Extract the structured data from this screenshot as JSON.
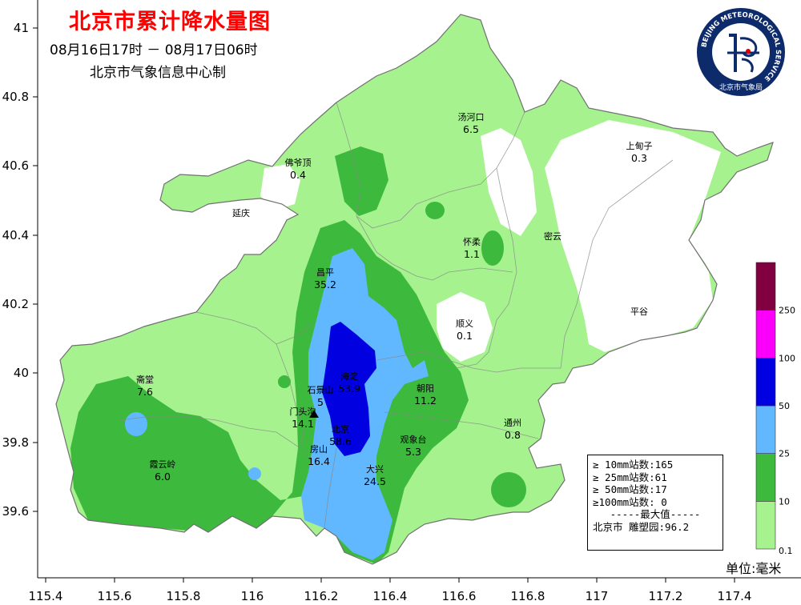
{
  "title": "北京市累计降水量图",
  "time_range": "08月16日17时 － 08月17日06时",
  "issuer": "北京市气象信息中心制",
  "logo": {
    "ring_text": "BEIJING METEOROLOGICAL SERVICE",
    "cn_text": "北京市气象局"
  },
  "unit_label": "单位:毫米",
  "axes": {
    "x_ticks": [
      "115.4",
      "115.6",
      "115.8",
      "116",
      "116.2",
      "116.4",
      "116.6",
      "116.8",
      "117",
      "117.2",
      "117.4"
    ],
    "y_ticks": [
      "41",
      "40.8",
      "40.6",
      "40.4",
      "40.2",
      "40",
      "39.8",
      "39.6"
    ]
  },
  "legend": {
    "levels": [
      {
        "label": "0.1",
        "color": "#a6f28f"
      },
      {
        "label": "10",
        "color": "#3dba3d"
      },
      {
        "label": "25",
        "color": "#61b8ff"
      },
      {
        "label": "50",
        "color": "#0000e1"
      },
      {
        "label": "100",
        "color": "#fa00fa"
      },
      {
        "label": "250",
        "color": "#800040"
      }
    ]
  },
  "stats": {
    "line1": "≥ 10mm站数:165",
    "line2": "≥ 25mm站数:61",
    "line3": "≥ 50mm站数:17",
    "line4": "≥100mm站数: 0",
    "line5": "-----最大值-----",
    "line6": "北京市 雕塑园:96.2"
  },
  "stations": [
    {
      "name": "汤河口",
      "value": "6.5"
    },
    {
      "name": "上甸子",
      "value": "0.3"
    },
    {
      "name": "佛爷顶",
      "value": "0.4"
    },
    {
      "name": "延庆",
      "value": ""
    },
    {
      "name": "密云",
      "value": ""
    },
    {
      "name": "怀柔",
      "value": "1.1"
    },
    {
      "name": "昌平",
      "value": "35.2"
    },
    {
      "name": "顺义",
      "value": "0.1"
    },
    {
      "name": "平谷",
      "value": ""
    },
    {
      "name": "斋堂",
      "value": "7.6"
    },
    {
      "name": "海淀",
      "value": "53.9"
    },
    {
      "name": "朝阳",
      "value": "11.2"
    },
    {
      "name": "石景山",
      "value": "5"
    },
    {
      "name": "门头沟",
      "value": "14.1"
    },
    {
      "name": "北京",
      "value": "58.6"
    },
    {
      "name": "观象台",
      "value": "5.3"
    },
    {
      "name": "通州",
      "value": "0.8"
    },
    {
      "name": "霞云岭",
      "value": "6.0"
    },
    {
      "name": "房山",
      "value": "16.4"
    },
    {
      "name": "大兴",
      "value": "24.5"
    }
  ]
}
